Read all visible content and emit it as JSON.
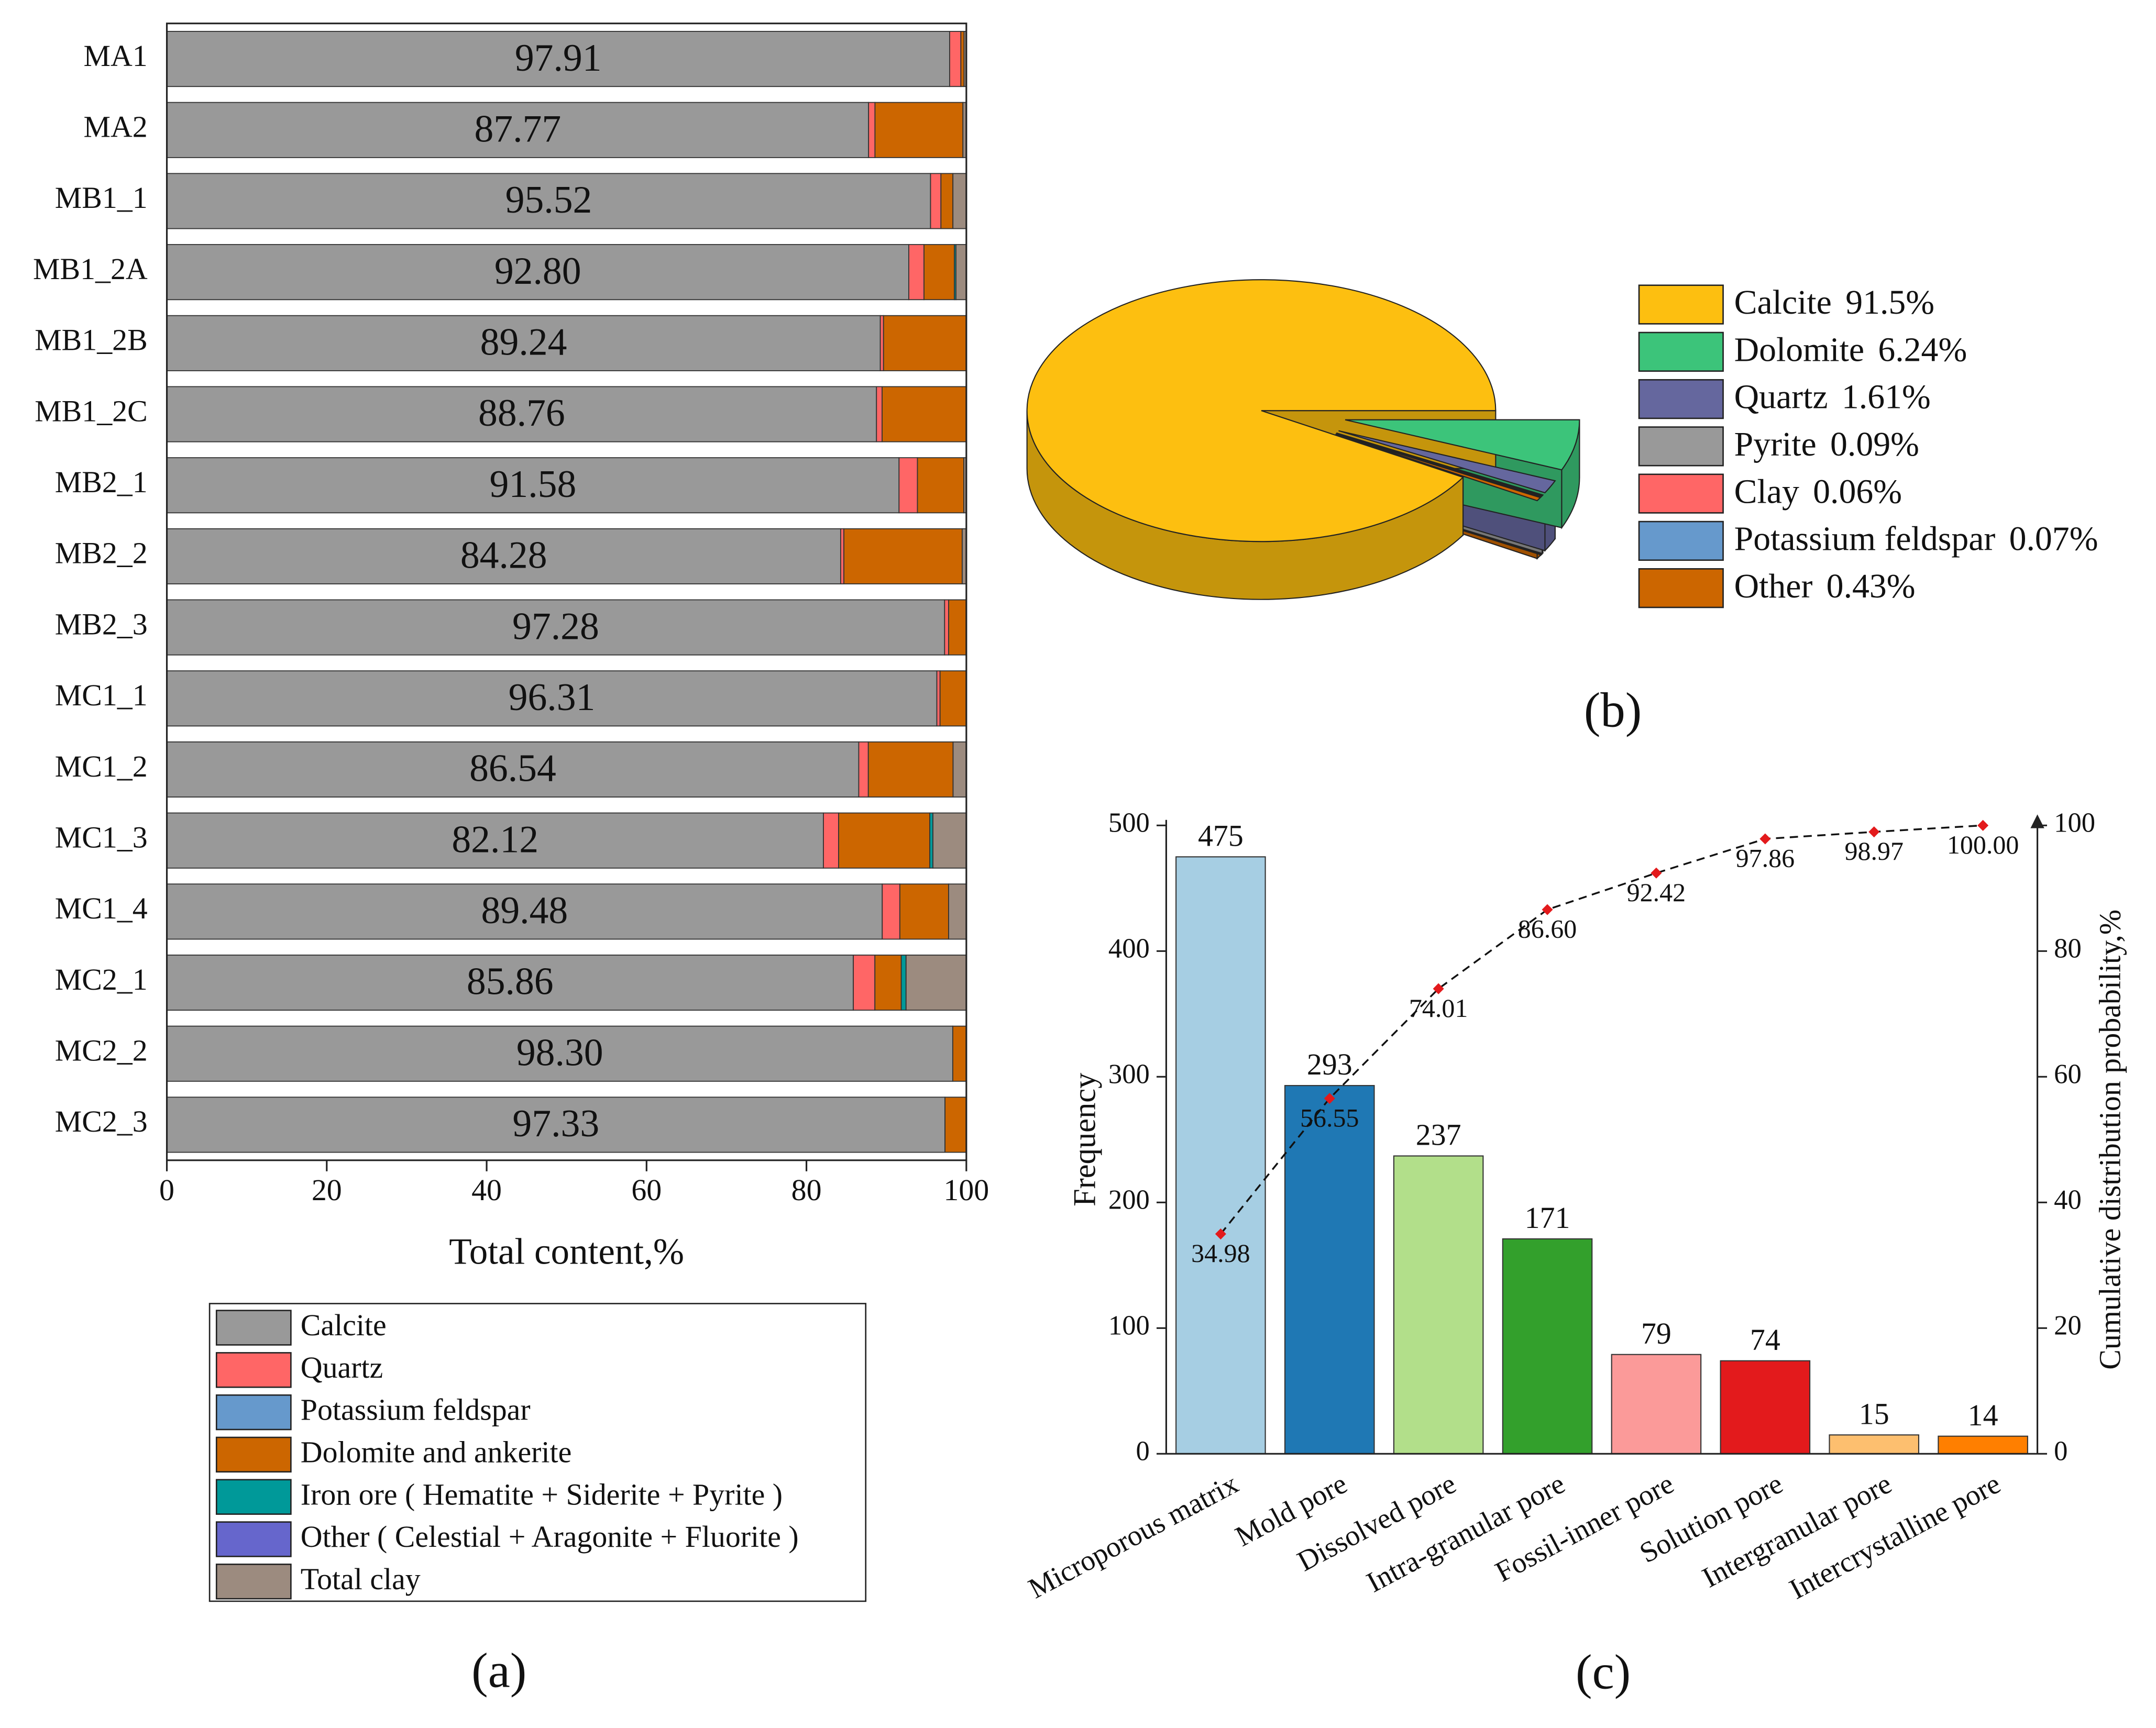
{
  "chart_data": [
    {
      "type": "bar",
      "orientation": "horizontal",
      "stacked": true,
      "caption": "(a)",
      "xlabel": "Total content,%",
      "categories": [
        "MA1",
        "MA2",
        "MB1_1",
        "MB1_2A",
        "MB1_2B",
        "MB1_2C",
        "MB2_1",
        "MB2_2",
        "MB2_3",
        "MC1_1",
        "MC1_2",
        "MC1_3",
        "MC1_4",
        "MC2_1",
        "MC2_2",
        "MC2_3"
      ],
      "xlim": [
        0,
        100
      ],
      "xticks": [
        0,
        20,
        40,
        60,
        80,
        100
      ],
      "series": [
        {
          "name": "Calcite",
          "color": "#999999",
          "values": [
            97.91,
            87.77,
            95.52,
            92.8,
            89.24,
            88.76,
            91.58,
            84.28,
            97.28,
            96.31,
            86.54,
            82.12,
            89.48,
            85.86,
            98.3,
            97.33
          ],
          "value_labels": [
            "97.91",
            "87.77",
            "95.52",
            "92.80",
            "89.24",
            "88.76",
            "91.58",
            "84.28",
            "97.28",
            "96.31",
            "86.54",
            "82.12",
            "89.48",
            "85.86",
            "98.30",
            "97.33"
          ]
        },
        {
          "name": "Quartz",
          "color": "#ff6666",
          "values": [
            1.4,
            0.8,
            1.3,
            1.9,
            0.4,
            0.7,
            2.3,
            0.4,
            0.5,
            0.4,
            1.2,
            1.9,
            2.2,
            2.7,
            0,
            0
          ]
        },
        {
          "name": "Potassium feldspar",
          "color": "#6699cc",
          "values": [
            0,
            0,
            0,
            0,
            0,
            0,
            0,
            0,
            0,
            0,
            0,
            0,
            0,
            0,
            0,
            0
          ]
        },
        {
          "name": "Dolomite and ankerite",
          "color": "#cc6600",
          "values": [
            0.4,
            11.0,
            1.5,
            3.8,
            10.36,
            10.54,
            5.8,
            14.8,
            2.22,
            3.29,
            10.6,
            11.4,
            6.1,
            3.3,
            1.7,
            2.67
          ]
        },
        {
          "name": "Iron ore ( Hematite + Siderite + Pyrite )",
          "color": "#009999",
          "values": [
            0,
            0,
            0,
            0.2,
            0,
            0,
            0,
            0,
            0,
            0,
            0,
            0.4,
            0,
            0.6,
            0,
            0
          ]
        },
        {
          "name": "Other ( Celestial + Aragonite + Fluorite )",
          "color": "#6666cc",
          "values": [
            0,
            0,
            0,
            0,
            0,
            0,
            0,
            0,
            0,
            0,
            0,
            0,
            0,
            0,
            0,
            0
          ]
        },
        {
          "name": "Total clay",
          "color": "#9c8b7f",
          "values": [
            0.29,
            0.43,
            1.68,
            1.3,
            0,
            0,
            0.32,
            0.52,
            0,
            0,
            1.66,
            4.18,
            2.22,
            7.54,
            0,
            0
          ]
        }
      ]
    },
    {
      "type": "pie",
      "caption": "(b)",
      "categories": [
        "Calcite",
        "Dolomite",
        "Quartz",
        "Pyrite",
        "Clay",
        "Potassium feldspar",
        "Other"
      ],
      "values": [
        91.5,
        6.24,
        1.61,
        0.09,
        0.06,
        0.07,
        0.43
      ],
      "value_labels": [
        "91.5%",
        "6.24%",
        "1.61%",
        "0.09%",
        "0.06%",
        "0.07%",
        "0.43%"
      ],
      "colors": [
        "#fdbf10",
        "#3cc47a",
        "#65679e",
        "#999999",
        "#ff6666",
        "#6699cc",
        "#cc6600"
      ]
    },
    {
      "type": "bar",
      "caption": "(c)",
      "ylabel": "Frequency",
      "y2label": "Cumulative distribution probability,%",
      "categories": [
        "Microporous matrix",
        "Mold pore",
        "Dissolved pore",
        "Intra-granular pore",
        "Fossil-inner pore",
        "Solution pore",
        "Intergranular pore",
        "Intercrystalline pore"
      ],
      "values": [
        475,
        293,
        237,
        171,
        79,
        74,
        15,
        14
      ],
      "colors": [
        "#a6cee3",
        "#1f78b4",
        "#b2df8a",
        "#33a02c",
        "#fb9a99",
        "#e31a1c",
        "#fdbf6f",
        "#ff7f00"
      ],
      "ylim": [
        0,
        500
      ],
      "yticks": [
        0,
        100,
        200,
        300,
        400,
        500
      ],
      "y2lim": [
        0,
        100
      ],
      "y2ticks": [
        0,
        20,
        40,
        60,
        80,
        100
      ],
      "cumulative": {
        "axis": "y2",
        "color": "#e31a1c",
        "values": [
          34.98,
          56.55,
          74.01,
          86.6,
          92.42,
          97.86,
          98.97,
          100
        ],
        "value_labels": [
          "34.98",
          "56.55",
          "74.01",
          "86.60",
          "92.42",
          "97.86",
          "98.97",
          "100.00"
        ]
      }
    }
  ]
}
